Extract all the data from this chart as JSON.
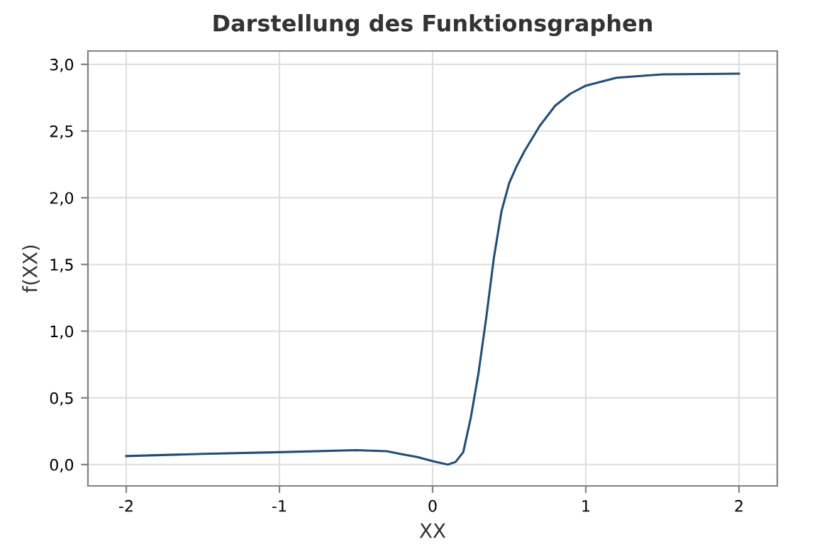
{
  "chart_data": {
    "type": "line",
    "title": "Darstellung des Funktionsgraphen",
    "xlabel": "XX",
    "ylabel": "f(XX)",
    "series": [
      {
        "color": "#1f4e79",
        "x": [
          -2,
          -1.5,
          -1,
          -0.5,
          -0.3,
          -0.2,
          -0.1,
          0,
          0.1,
          0.15,
          0.2,
          0.25,
          0.3,
          0.35,
          0.4,
          0.45,
          0.5,
          0.55,
          0.6,
          0.7,
          0.8,
          0.9,
          1,
          1.2,
          1.5,
          2
        ],
        "values": [
          0.064,
          0.08,
          0.093,
          0.108,
          0.1,
          0.078,
          0.056,
          0.026,
          0,
          0.02,
          0.093,
          0.355,
          0.69,
          1.1,
          1.55,
          1.9,
          2.11,
          2.24,
          2.35,
          2.54,
          2.69,
          2.78,
          2.84,
          2.9,
          2.925,
          2.93
        ]
      }
    ],
    "xlim": [
      -2.25,
      2.25
    ],
    "ylim": [
      -0.16,
      3.1
    ],
    "xticks": [
      -2,
      -1,
      0,
      1,
      2
    ],
    "yticks": [
      {
        "value": 0,
        "label": "0,0"
      },
      {
        "value": 0.5,
        "label": "0,5"
      },
      {
        "value": 1,
        "label": "1,0"
      },
      {
        "value": 1.5,
        "label": "1,5"
      },
      {
        "value": 2,
        "label": "2,0"
      },
      {
        "value": 2.5,
        "label": "2,5"
      },
      {
        "value": 3,
        "label": "3,0"
      }
    ],
    "grid": true,
    "marker": "none",
    "line_style": "solid"
  }
}
